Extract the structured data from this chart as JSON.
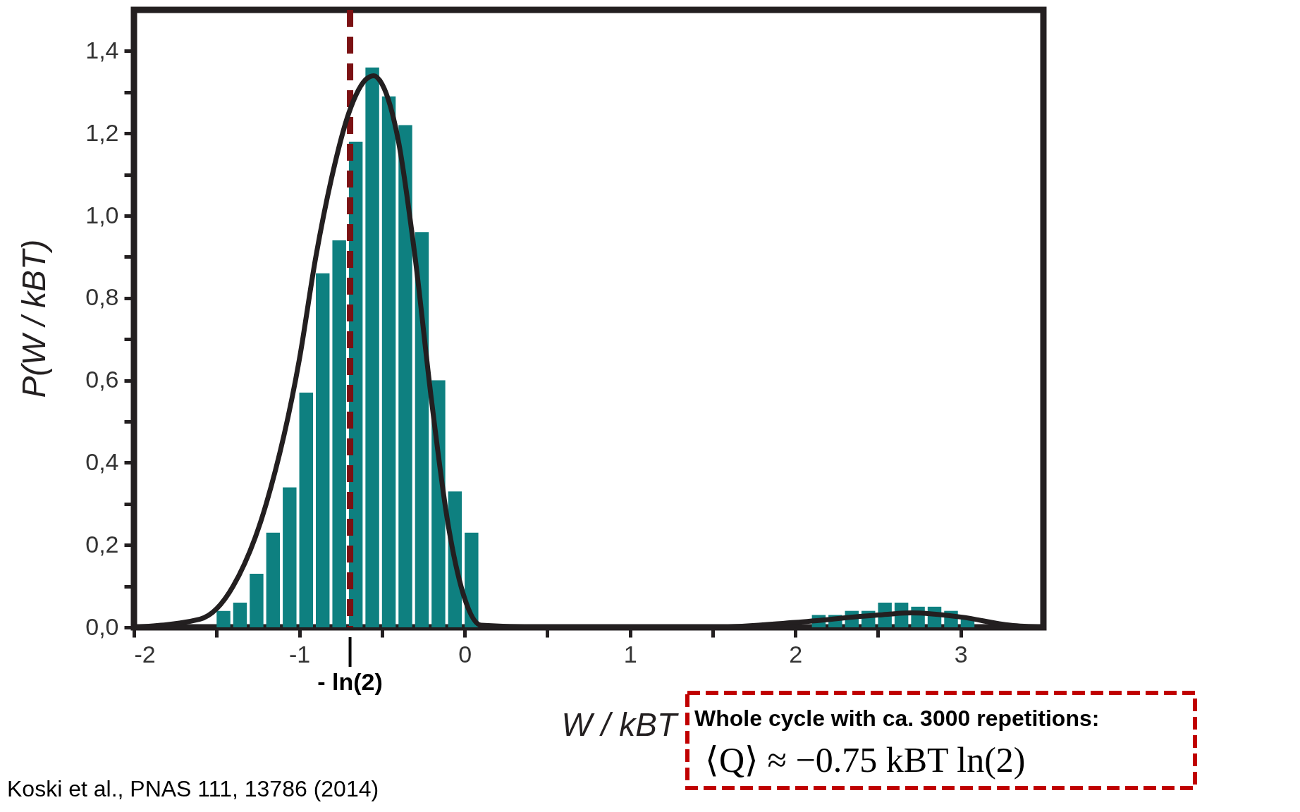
{
  "chart_data": {
    "type": "histogram",
    "xlabel": "W / kBT",
    "ylabel": "P(W / kBT)",
    "bins": [
      -1.5,
      -1.4,
      -1.3,
      -1.2,
      -1.1,
      -1.0,
      -0.9,
      -0.8,
      -0.7,
      -0.6,
      -0.5,
      -0.4,
      -0.3,
      -0.2,
      -0.1,
      0.0,
      0.1,
      0.2,
      0.3,
      0.4,
      0.5,
      0.6,
      0.7,
      0.8,
      0.9,
      1.0,
      1.1,
      1.2,
      1.3,
      1.4,
      1.5,
      1.6,
      1.7,
      1.8,
      1.9,
      2.0,
      2.1,
      2.2,
      2.3,
      2.4,
      2.5,
      2.6,
      2.7,
      2.8,
      2.9,
      3.0,
      3.1
    ],
    "values": [
      0.04,
      0.06,
      0.13,
      0.23,
      0.34,
      0.57,
      0.86,
      0.94,
      1.18,
      1.36,
      1.29,
      1.22,
      0.96,
      0.6,
      0.33,
      0.23,
      0,
      0,
      0,
      0,
      0,
      0,
      0,
      0,
      0,
      0,
      0,
      0,
      0,
      0,
      0,
      0,
      0,
      0,
      null,
      null,
      0.03,
      0.03,
      0.04,
      0.04,
      0.06,
      0.06,
      0.05,
      0.05,
      0.04,
      0.02
    ],
    "color": "#0e8080",
    "series": [
      {
        "type": "line",
        "color": "#231f20",
        "x": [
          -2.0,
          -1.6,
          -1.4,
          -1.2,
          -1.0,
          -0.9,
          -0.8,
          -0.7,
          -0.6,
          -0.55,
          -0.5,
          -0.4,
          -0.3,
          -0.2,
          -0.1,
          0.0,
          0.1,
          0.5,
          1.5,
          2.0,
          2.5,
          2.7,
          3.0,
          3.3,
          3.5
        ],
        "values": [
          0,
          0.02,
          0.1,
          0.3,
          0.65,
          0.9,
          1.1,
          1.25,
          1.33,
          1.34,
          1.32,
          1.18,
          0.9,
          0.55,
          0.25,
          0.07,
          0.005,
          0,
          0,
          0.012,
          0.03,
          0.035,
          0.025,
          0.005,
          0
        ]
      }
    ],
    "ref_lines": [
      {
        "axis": "x",
        "value": -0.693,
        "label": "- ln(2)",
        "color": "#7b1113",
        "line_style": "dashed"
      }
    ],
    "xlim": [
      -2,
      3.5
    ],
    "ylim": [
      0,
      1.5
    ],
    "xticks": [
      -2,
      {
        "value": -1.5,
        "label": null
      },
      -1,
      {
        "value": -0.5,
        "label": null
      },
      0,
      {
        "value": 0.5,
        "label": null
      },
      1,
      {
        "value": 1.5,
        "label": null
      },
      2,
      {
        "value": 2.5,
        "label": null
      },
      3
    ],
    "yticks": [
      {
        "value": 0,
        "label": "0,0"
      },
      {
        "value": 0.1,
        "label": null
      },
      {
        "value": 0.2,
        "label": "0,2"
      },
      {
        "value": 0.3,
        "label": null
      },
      {
        "value": 0.4,
        "label": "0,4"
      },
      {
        "value": 0.5,
        "label": null
      },
      {
        "value": 0.6,
        "label": "0,6"
      },
      {
        "value": 0.7,
        "label": null
      },
      {
        "value": 0.8,
        "label": "0,8"
      },
      {
        "value": 0.9,
        "label": null
      },
      {
        "value": 1.0,
        "label": "1,0"
      },
      {
        "value": 1.1,
        "label": null
      },
      {
        "value": 1.2,
        "label": "1,2"
      },
      {
        "value": 1.3,
        "label": null
      },
      {
        "value": 1.4,
        "label": "1,4"
      }
    ],
    "grid": false,
    "annotations": [
      "Whole cycle with ca. 3000 repetitions:",
      "⟨Q⟩ ≈ −0.75 kBT ln(2)",
      "Koski et al., PNAS 111, 13786 (2014)"
    ]
  }
}
